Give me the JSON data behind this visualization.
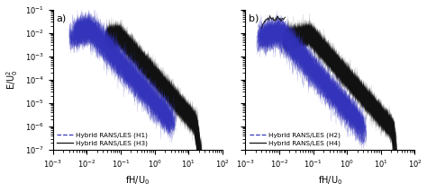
{
  "panel_a": {
    "label": "a)",
    "legend": [
      {
        "label": "Hybrid RANS/LES (H1)",
        "color": "#3333bb",
        "linestyle": "--"
      },
      {
        "label": "Hybrid RANS/LES (H3)",
        "color": "#111111",
        "linestyle": "-"
      }
    ]
  },
  "panel_b": {
    "label": "b)",
    "legend": [
      {
        "label": "Hybrid RANS/LES (H2)",
        "color": "#3333bb",
        "linestyle": "--"
      },
      {
        "label": "Hybrid RANS/LES (H4)",
        "color": "#111111",
        "linestyle": "-"
      }
    ]
  },
  "xlim": [
    0.001,
    100.0
  ],
  "ylim": [
    1e-07,
    0.1
  ],
  "xlabel": "fH/U$_0$",
  "ylabel": "E/U$_0^2$",
  "title_fontsize": 8,
  "legend_fontsize": 5.2,
  "axis_fontsize": 7,
  "tick_fontsize": 6,
  "background_color": "#ffffff"
}
